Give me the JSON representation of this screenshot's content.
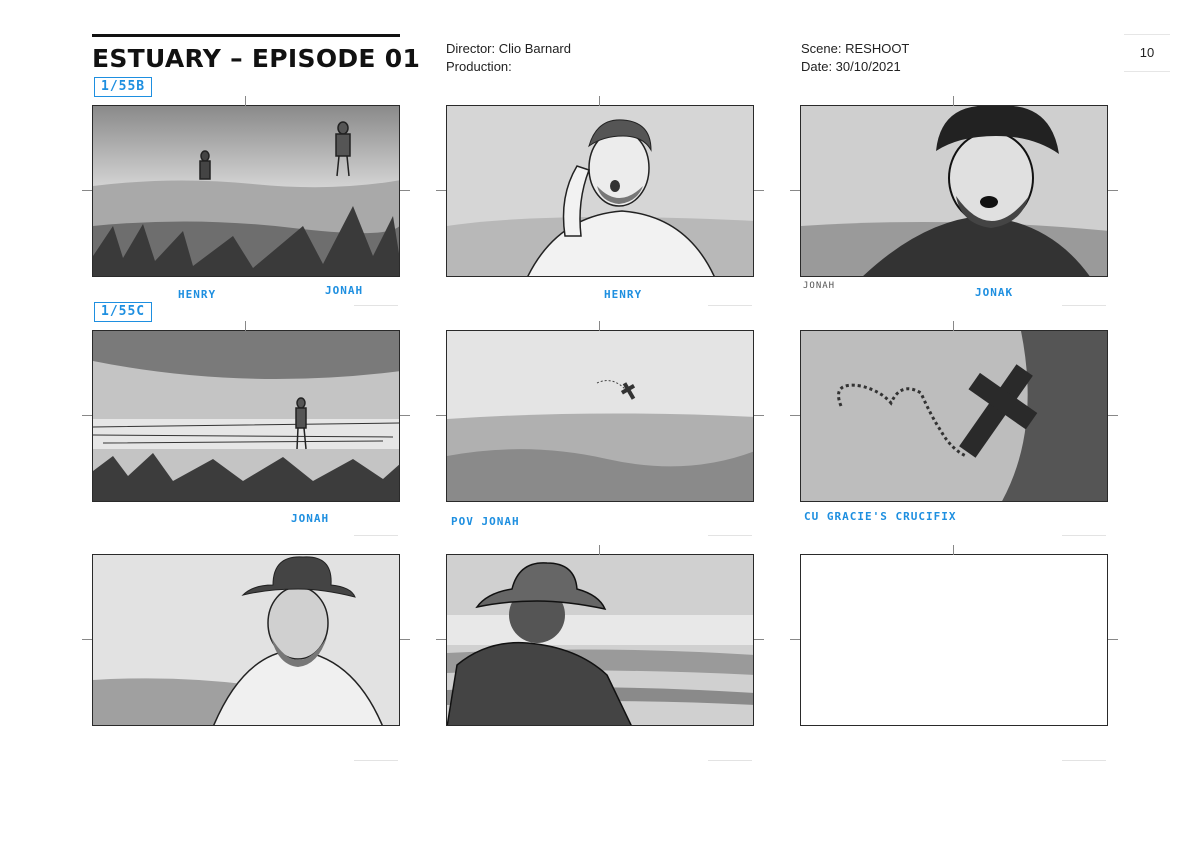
{
  "header": {
    "title": "ESTUARY – EPISODE 01",
    "director": "Director: Clio Barnard",
    "production": "Production:",
    "scene": "Scene: RESHOOT",
    "date": "Date: 30/10/2021",
    "page_number": "10"
  },
  "shot_tags": [
    "1/55B",
    "1/55C"
  ],
  "panels": [
    {
      "id": 1,
      "subject": "two figures on grassy dune",
      "captions": [
        "HENRY",
        "JONAH"
      ]
    },
    {
      "id": 2,
      "subject": "man calling out, hand raised",
      "captions": [
        "HENRY"
      ]
    },
    {
      "id": 3,
      "subject": "bearded man in hat shouting",
      "captions": [
        "JONAH",
        "JONAK"
      ]
    },
    {
      "id": 4,
      "subject": "lone figure walking on shore",
      "captions": [
        "JONAH"
      ]
    },
    {
      "id": 5,
      "subject": "crucifix in grass, distant",
      "captions": [
        "POV JONAH"
      ]
    },
    {
      "id": 6,
      "subject": "close-up rosary and crucifix",
      "captions": [
        "CU GRACIE'S CRUCIFIX"
      ]
    },
    {
      "id": 7,
      "subject": "bearded man in hat, close",
      "captions": []
    },
    {
      "id": 8,
      "subject": "man in hat from behind facing sea",
      "captions": []
    },
    {
      "id": 9,
      "subject": "empty frame",
      "captions": []
    }
  ],
  "colors": {
    "annotation_blue": "#1e8fe0",
    "frame": "#2a2a2a"
  }
}
